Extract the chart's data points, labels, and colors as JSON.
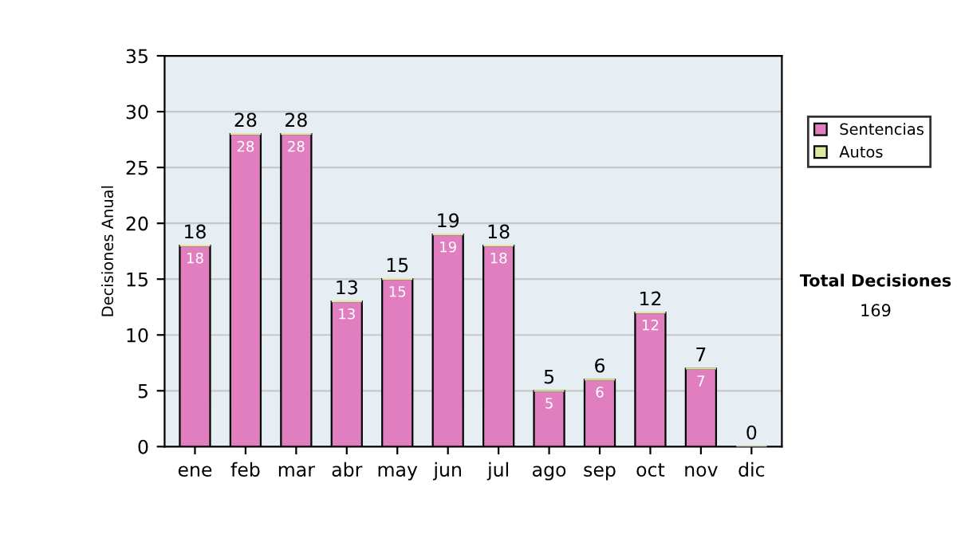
{
  "chart_data": {
    "type": "bar",
    "stacked": true,
    "ylabel": "Decisiones Anual",
    "categories": [
      "ene",
      "feb",
      "mar",
      "abr",
      "may",
      "jun",
      "jul",
      "ago",
      "sep",
      "oct",
      "nov",
      "dic"
    ],
    "series": [
      {
        "name": "Sentencias",
        "color": "#e07ec0",
        "values": [
          18,
          28,
          28,
          13,
          15,
          19,
          18,
          5,
          6,
          12,
          7,
          0
        ],
        "value_labels": [
          "18",
          "28",
          "28",
          "13",
          "15",
          "19",
          "18",
          "5",
          "6",
          "12",
          "7",
          null
        ]
      },
      {
        "name": "Autos",
        "color": "#e0e8a0",
        "values": [
          0,
          0,
          0,
          0,
          0,
          0,
          0,
          0,
          0,
          0,
          0,
          0
        ]
      }
    ],
    "totals": [
      "18",
      "28",
      "28",
      "13",
      "15",
      "19",
      "18",
      "5",
      "6",
      "12",
      "7",
      "0"
    ],
    "ylim": [
      0,
      35
    ],
    "yticks": [
      0,
      5,
      10,
      15,
      20,
      25,
      30,
      35
    ],
    "grid": "y",
    "legend": "right",
    "annotations": [
      "Total Decisiones",
      "169"
    ]
  }
}
